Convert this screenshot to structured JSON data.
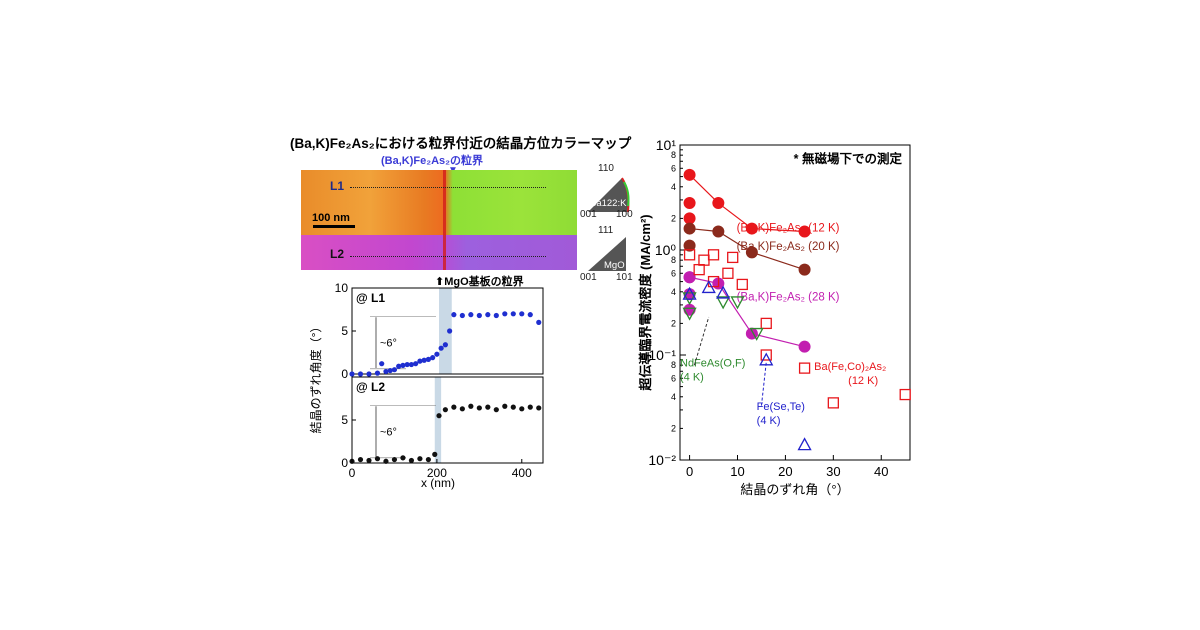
{
  "left_panel": {
    "title": "(Ba,K)Fe₂As₂における粒界付近の結晶方位カラーマップ",
    "grain_boundary_label": "(Ba,K)Fe₂As₂の粒界",
    "mgo_boundary_label": "MgO基板の粒界",
    "scale_bar": "100 nm",
    "line1": "L1",
    "line2": "L2",
    "legend_ba122": {
      "top": "110",
      "left": "001",
      "right": "100",
      "name": "Ba122:K"
    },
    "legend_mgo": {
      "top": "111",
      "left": "001",
      "right": "101",
      "name": "MgO"
    },
    "colors": {
      "boundary_blue": "#3b3bd6",
      "boundary_red": "#d21b1b"
    }
  },
  "chart_data": [
    {
      "type": "scatter",
      "id": "misorientation_profiles",
      "ylabel": "結晶のずれ角度（°）",
      "xlabel": "x (nm)",
      "xlim": [
        0,
        450
      ],
      "xticks": [
        "0",
        "200",
        "400"
      ],
      "panels": [
        {
          "label": "@ L1",
          "color": "#1f2fd0",
          "ylim": [
            0,
            10
          ],
          "yticks": [
            "0",
            "5",
            "10"
          ],
          "annotation": "~6°",
          "boundary_band": [
            205,
            235
          ],
          "x": [
            0,
            20,
            40,
            60,
            70,
            80,
            90,
            100,
            110,
            120,
            130,
            140,
            150,
            160,
            170,
            180,
            190,
            200,
            210,
            220,
            230,
            240,
            260,
            280,
            300,
            320,
            340,
            360,
            380,
            400,
            420,
            440
          ],
          "y": [
            0,
            0,
            0,
            0.1,
            1.2,
            0.3,
            0.4,
            0.5,
            0.9,
            1.0,
            1.1,
            1.1,
            1.2,
            1.5,
            1.6,
            1.7,
            1.9,
            2.3,
            3.0,
            3.4,
            5.0,
            6.9,
            6.8,
            6.9,
            6.8,
            6.9,
            6.8,
            7.0,
            7.0,
            7.0,
            6.9,
            6.0
          ]
        },
        {
          "label": "@ L2",
          "color": "#111111",
          "ylim": [
            0,
            10
          ],
          "yticks": [
            "0",
            "5"
          ],
          "annotation": "~6°",
          "boundary_band": [
            195,
            210
          ],
          "x": [
            0,
            20,
            40,
            60,
            80,
            100,
            120,
            140,
            160,
            180,
            195,
            205,
            220,
            240,
            260,
            280,
            300,
            320,
            340,
            360,
            380,
            400,
            420,
            440
          ],
          "y": [
            0.2,
            0.4,
            0.3,
            0.5,
            0.2,
            0.4,
            0.6,
            0.3,
            0.5,
            0.4,
            1.0,
            5.5,
            6.2,
            6.5,
            6.3,
            6.6,
            6.4,
            6.5,
            6.2,
            6.6,
            6.5,
            6.3,
            6.5,
            6.4
          ]
        }
      ]
    },
    {
      "type": "scatter",
      "id": "jc_vs_angle",
      "annotation": "* 無磁場下での測定",
      "xlabel": "結晶のずれ角（°）",
      "ylabel": "超伝導臨界電流密度 (MA/cm²)",
      "xlim": [
        -2,
        46
      ],
      "ylim": [
        0.01,
        10
      ],
      "log_y": true,
      "xticks": [
        "0",
        "10",
        "20",
        "30",
        "40"
      ],
      "yticks": [
        "10⁻²",
        "10⁻¹",
        "10⁰",
        "10¹"
      ],
      "series": [
        {
          "name": "(Ba,K)Fe₂As₂ (12 K)",
          "color": "#e8161b",
          "marker": "filled-circle",
          "connected": true,
          "x": [
            0,
            0,
            0,
            6,
            13,
            24
          ],
          "y": [
            5.2,
            2.8,
            2.0,
            2.8,
            1.6,
            1.5
          ]
        },
        {
          "name": "(Ba,K)Fe₂As₂ (20 K)",
          "color": "#8b2a1c",
          "marker": "filled-circle",
          "connected": true,
          "x": [
            0,
            0,
            6,
            13,
            24
          ],
          "y": [
            1.6,
            1.1,
            1.5,
            0.95,
            0.65
          ]
        },
        {
          "name": "(Ba,K)Fe₂As₂ (28 K)",
          "color": "#c21fb0",
          "marker": "filled-circle",
          "connected": true,
          "x": [
            0,
            0,
            0,
            0,
            6,
            13,
            24
          ],
          "y": [
            0.55,
            0.38,
            0.27,
            0.55,
            0.48,
            0.16,
            0.12
          ]
        },
        {
          "name": "Ba(Fe,Co)₂As₂ (12 K)",
          "color": "#e8161b",
          "marker": "open-square",
          "connected": false,
          "x": [
            0,
            2,
            3,
            5,
            5,
            8,
            9,
            11,
            16,
            16,
            24,
            30,
            45
          ],
          "y": [
            0.9,
            0.65,
            0.8,
            0.5,
            0.9,
            0.6,
            0.85,
            0.47,
            0.2,
            0.1,
            0.075,
            0.035,
            0.042
          ]
        },
        {
          "name": "NdFeAs(O,F) (4 K)",
          "color": "#2e8a2e",
          "marker": "open-triangle-down",
          "connected": false,
          "x": [
            0,
            0,
            7,
            10,
            14
          ],
          "y": [
            0.35,
            0.25,
            0.32,
            0.32,
            0.16
          ]
        },
        {
          "name": "Fe(Se,Te) (4 K)",
          "color": "#2222cc",
          "marker": "open-triangle-up",
          "connected": false,
          "x": [
            0,
            4,
            7,
            16,
            24
          ],
          "y": [
            0.38,
            0.44,
            0.39,
            0.09,
            0.014
          ]
        }
      ]
    }
  ]
}
